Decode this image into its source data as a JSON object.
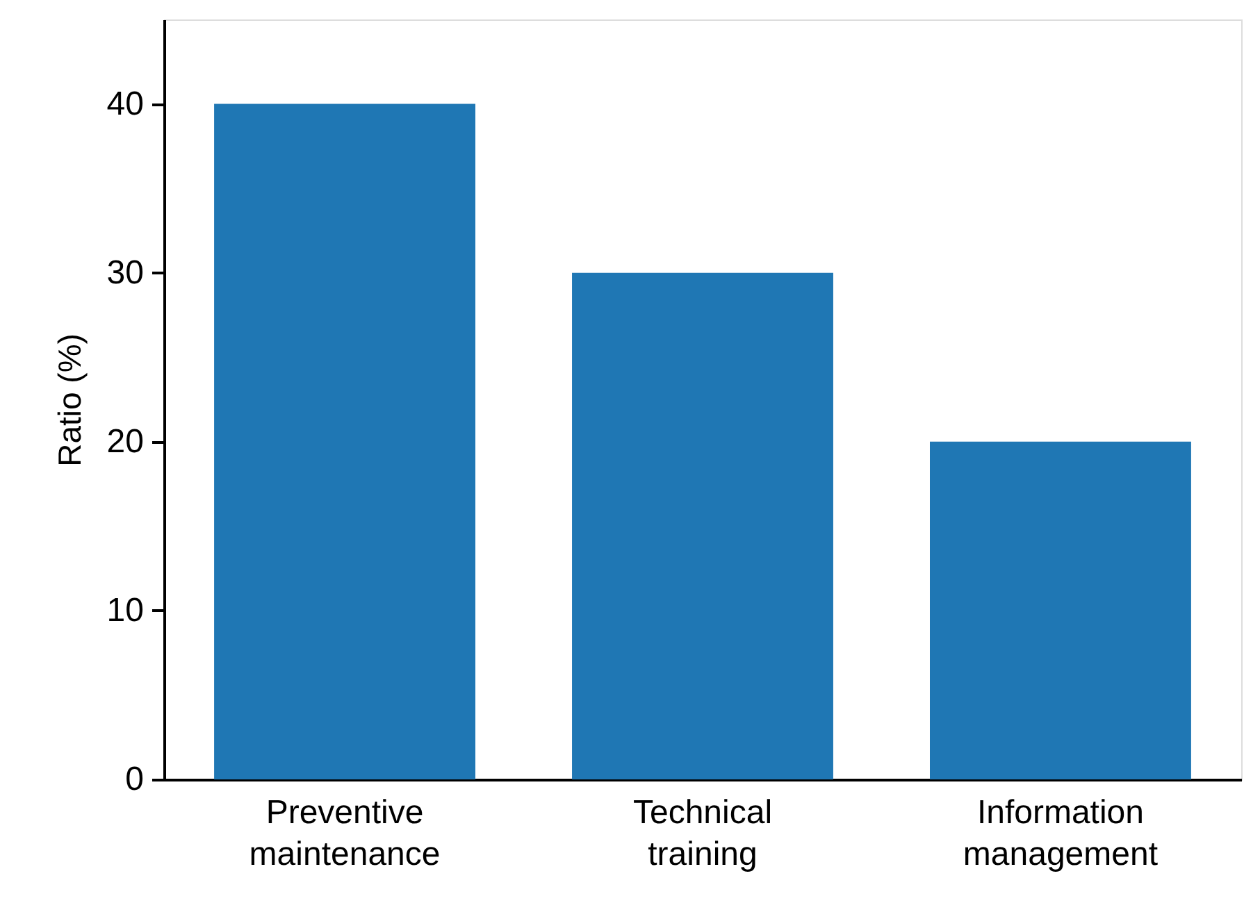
{
  "chart_data": {
    "type": "bar",
    "categories": [
      "Preventive maintenance",
      "Technical training",
      "Information management"
    ],
    "values": [
      40,
      30,
      20
    ],
    "color": "#1f77b4",
    "ylabel": "Ratio (%)",
    "ylim": [
      0,
      45
    ],
    "yticks": [
      0,
      10,
      20,
      30,
      40
    ],
    "grid": false
  }
}
